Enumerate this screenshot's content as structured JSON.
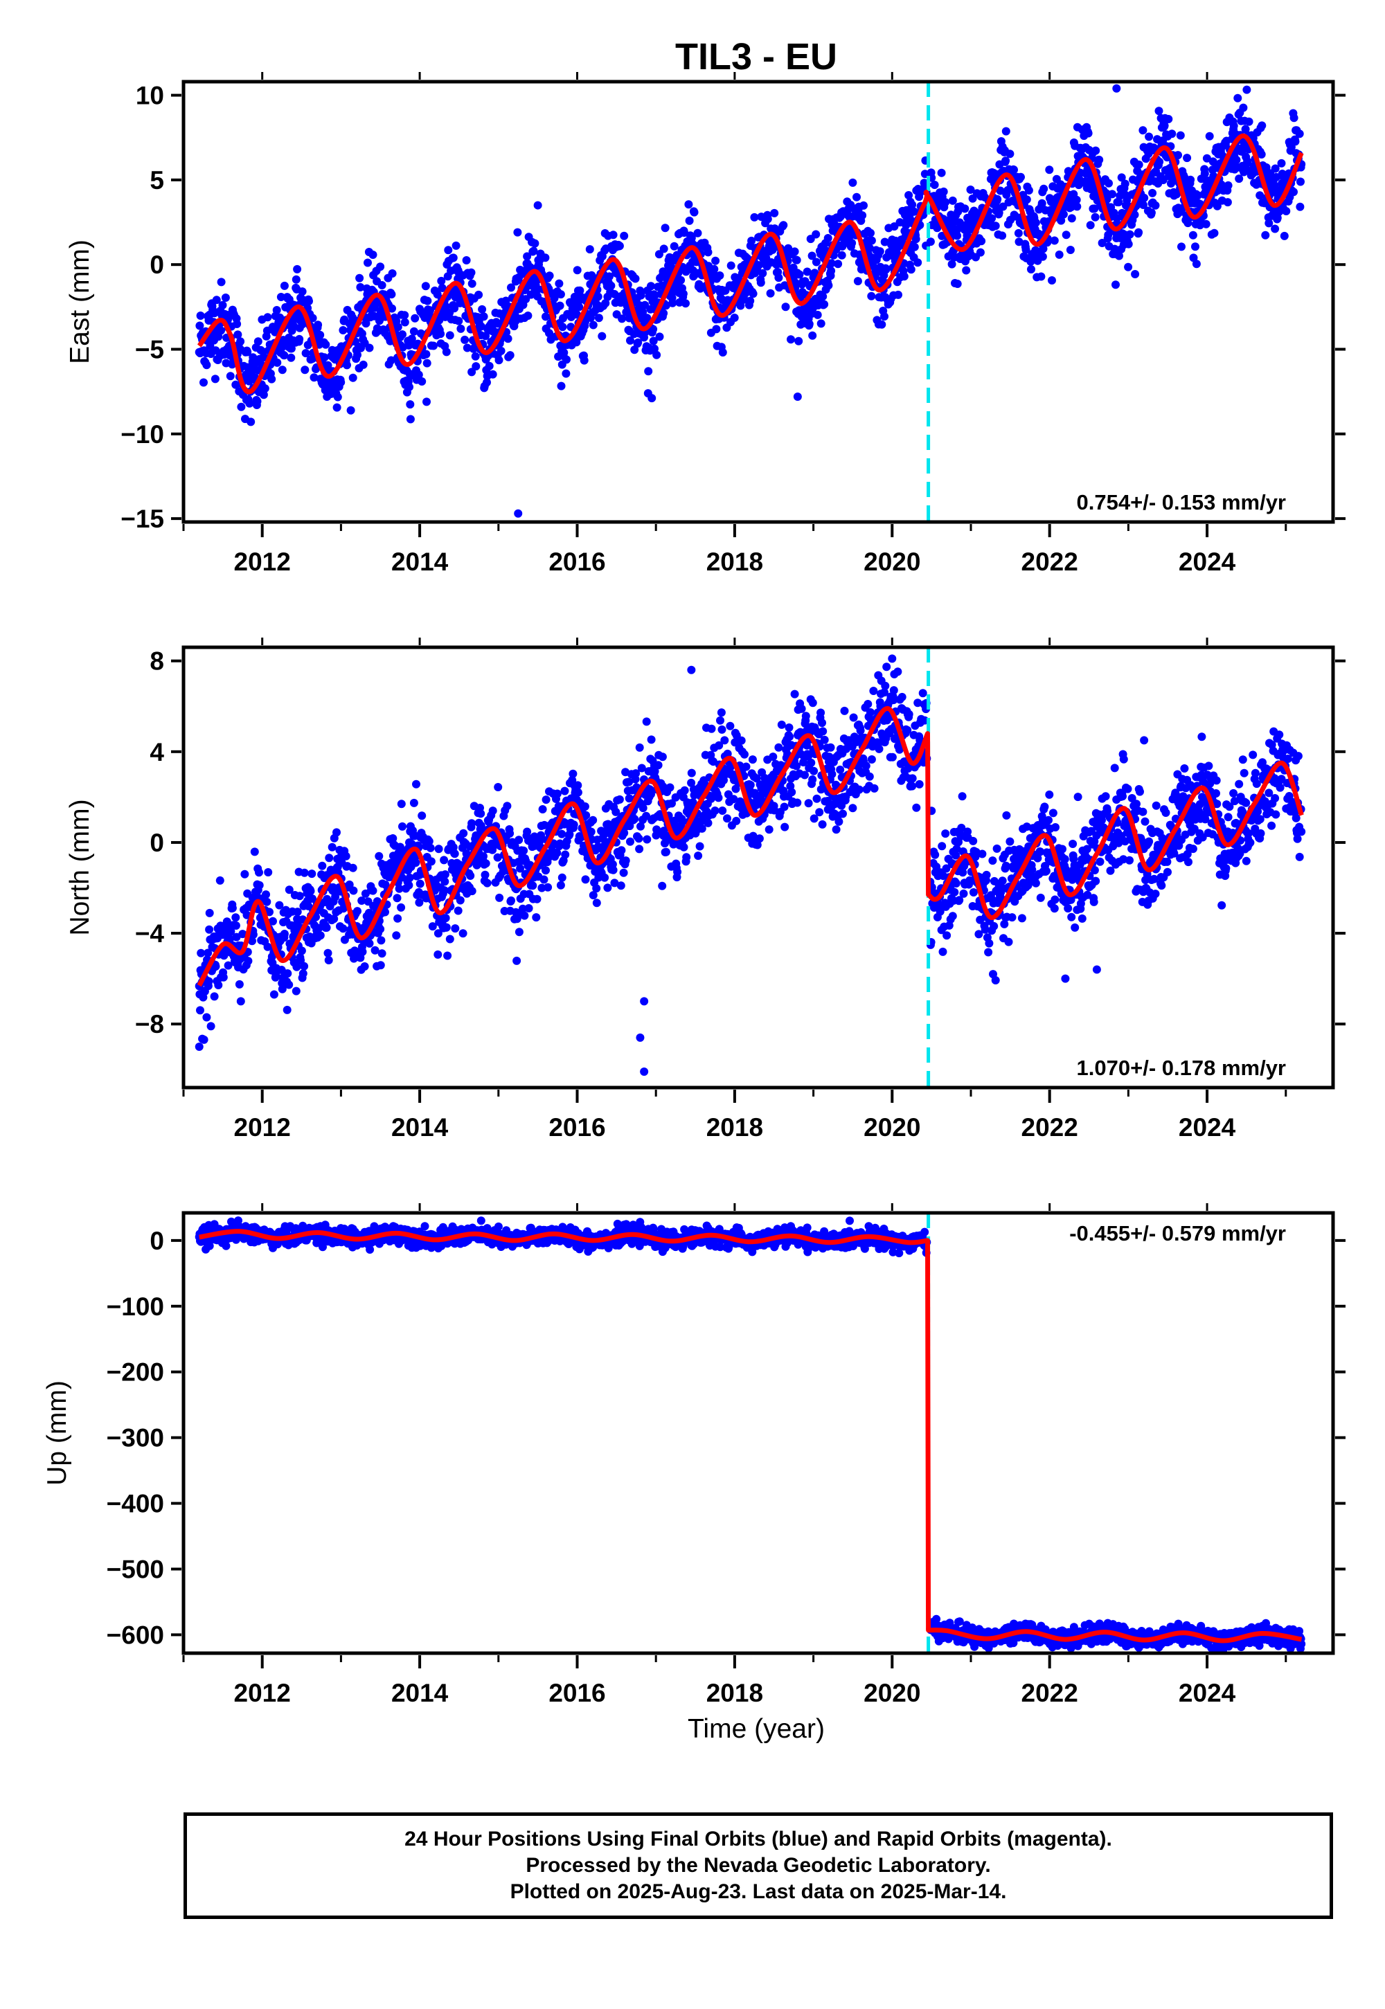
{
  "title": "TIL3 - EU",
  "colors": {
    "dots": "#0000ff",
    "fit": "#ff0000",
    "event_line": "#00e5ee",
    "axes": "#000000"
  },
  "xlabel": "Time (year)",
  "footer": {
    "line1": "24 Hour Positions Using Final Orbits (blue) and Rapid Orbits (magenta).",
    "line2": "Processed by the Nevada Geodetic Laboratory.",
    "line3": "Plotted on 2025-Aug-23. Last data on 2025-Mar-14."
  },
  "chart_data": [
    {
      "type": "scatter",
      "ylabel": "East (mm)",
      "rate": "0.754+/- 0.153 mm/yr",
      "rate_position": "bottom-right",
      "xlim": [
        2011.0,
        2025.6
      ],
      "ylim": [
        -15.2,
        10.8
      ],
      "xticks": [
        2012,
        2014,
        2016,
        2018,
        2020,
        2022,
        2024
      ],
      "yticks": [
        -15,
        -10,
        -5,
        0,
        5,
        10
      ],
      "ytick_labels": [
        "−15",
        "−10",
        "−5",
        "0",
        "5",
        "10"
      ],
      "event_line_x": 2020.46,
      "series": [
        {
          "kind": "daily positions",
          "points": "dense daily scatter 2011.2–2025.2",
          "scatter_halfwidth_mm": 2.2,
          "outliers": [
            [
              2015.25,
              -14.7
            ],
            [
              2022.85,
              10.4
            ],
            [
              2015.5,
              3.5
            ],
            [
              2016.9,
              -7.6
            ],
            [
              2018.8,
              -7.8
            ]
          ]
        },
        {
          "kind": "model fit",
          "x": [
            2011.2,
            2011.45,
            2011.6,
            2011.85,
            2012.45,
            2012.85,
            2013.45,
            2013.85,
            2014.45,
            2014.85,
            2015.45,
            2015.85,
            2016.45,
            2016.85,
            2017.45,
            2017.85,
            2018.45,
            2018.85,
            2019.45,
            2019.85,
            2020.4,
            2020.46,
            2020.9,
            2021.45,
            2021.85,
            2022.45,
            2022.85,
            2023.45,
            2023.85,
            2024.45,
            2024.85,
            2025.2
          ],
          "y": [
            -4.8,
            -3.3,
            -4.2,
            -7.5,
            -2.5,
            -6.6,
            -1.8,
            -5.9,
            -1.1,
            -5.2,
            -0.4,
            -4.5,
            0.3,
            -3.8,
            1.0,
            -3.0,
            1.8,
            -2.3,
            2.5,
            -1.5,
            3.5,
            4.0,
            0.9,
            5.3,
            1.2,
            6.2,
            2.1,
            6.9,
            2.8,
            7.6,
            3.5,
            6.6
          ]
        }
      ]
    },
    {
      "type": "scatter",
      "ylabel": "North (mm)",
      "rate": "1.070+/- 0.178 mm/yr",
      "rate_position": "bottom-right",
      "xlim": [
        2011.0,
        2025.6
      ],
      "ylim": [
        -10.8,
        8.6
      ],
      "xticks": [
        2012,
        2014,
        2016,
        2018,
        2020,
        2022,
        2024
      ],
      "yticks": [
        -8,
        -4,
        0,
        4,
        8
      ],
      "ytick_labels": [
        "−8",
        "−4",
        "0",
        "4",
        "8"
      ],
      "event_line_x": 2020.46,
      "series": [
        {
          "kind": "daily positions",
          "points": "dense daily scatter 2011.2–2025.2",
          "scatter_halfwidth_mm": 1.9,
          "outliers": [
            [
              2016.85,
              -10.1
            ],
            [
              2016.8,
              -8.6
            ],
            [
              2016.85,
              -7.0
            ],
            [
              2011.2,
              -9.0
            ],
            [
              2017.45,
              7.6
            ],
            [
              2020.0,
              8.1
            ],
            [
              2022.6,
              -5.6
            ],
            [
              2022.2,
              -6.0
            ],
            [
              2023.2,
              4.5
            ]
          ]
        },
        {
          "kind": "model fit",
          "x": [
            2011.2,
            2011.5,
            2011.75,
            2011.95,
            2012.25,
            2012.6,
            2012.95,
            2013.25,
            2013.6,
            2013.95,
            2014.25,
            2014.6,
            2014.95,
            2015.25,
            2015.6,
            2015.95,
            2016.25,
            2016.6,
            2016.95,
            2017.25,
            2017.6,
            2017.95,
            2018.25,
            2018.6,
            2018.95,
            2019.25,
            2019.6,
            2019.95,
            2020.25,
            2020.45,
            2020.46,
            2020.6,
            2020.95,
            2021.25,
            2021.6,
            2021.95,
            2022.25,
            2022.6,
            2022.95,
            2023.25,
            2023.6,
            2023.95,
            2024.25,
            2024.6,
            2024.95,
            2025.2
          ],
          "y": [
            -6.3,
            -4.5,
            -4.8,
            -2.6,
            -5.2,
            -3.3,
            -1.5,
            -4.2,
            -2.2,
            -0.3,
            -3.1,
            -1.0,
            0.6,
            -1.9,
            -0.2,
            1.7,
            -0.9,
            1.0,
            2.7,
            0.2,
            2.0,
            3.7,
            1.2,
            3.0,
            4.7,
            2.2,
            4.0,
            5.9,
            3.5,
            4.8,
            -2.3,
            -2.4,
            -0.6,
            -3.3,
            -1.5,
            0.3,
            -2.3,
            -0.5,
            1.5,
            -1.2,
            0.6,
            2.4,
            -0.1,
            1.7,
            3.5,
            1.2
          ]
        }
      ]
    },
    {
      "type": "scatter",
      "ylabel": "Up (mm)",
      "rate": "-0.455+/- 0.579 mm/yr",
      "rate_position": "top-right",
      "xlim": [
        2011.0,
        2025.6
      ],
      "ylim": [
        -628,
        42
      ],
      "xticks": [
        2012,
        2014,
        2016,
        2018,
        2020,
        2022,
        2024
      ],
      "yticks": [
        -600,
        -500,
        -400,
        -300,
        -200,
        -100,
        0
      ],
      "ytick_labels": [
        "−600",
        "−500",
        "−400",
        "−300",
        "−200",
        "−100",
        "0"
      ],
      "event_line_x": 2020.46,
      "series": [
        {
          "kind": "daily positions",
          "points": "dense daily scatter 2011.2–2025.2",
          "scatter_halfwidth_mm": 12,
          "outliers": []
        },
        {
          "kind": "model fit",
          "x": [
            2011.2,
            2011.7,
            2012.2,
            2012.7,
            2013.2,
            2013.7,
            2014.2,
            2014.7,
            2015.2,
            2015.7,
            2016.2,
            2016.7,
            2017.2,
            2017.7,
            2018.2,
            2018.7,
            2019.2,
            2019.7,
            2020.2,
            2020.45,
            2020.46,
            2020.7,
            2021.2,
            2021.7,
            2022.2,
            2022.7,
            2023.2,
            2023.7,
            2024.2,
            2024.7,
            2025.2
          ],
          "y": [
            5,
            14,
            3,
            12,
            2,
            11,
            1,
            10,
            0,
            10,
            0,
            9,
            -1,
            8,
            -2,
            7,
            -3,
            6,
            -3,
            0,
            -593,
            -594,
            -606,
            -595,
            -607,
            -596,
            -608,
            -597,
            -609,
            -598,
            -607
          ]
        }
      ]
    }
  ]
}
